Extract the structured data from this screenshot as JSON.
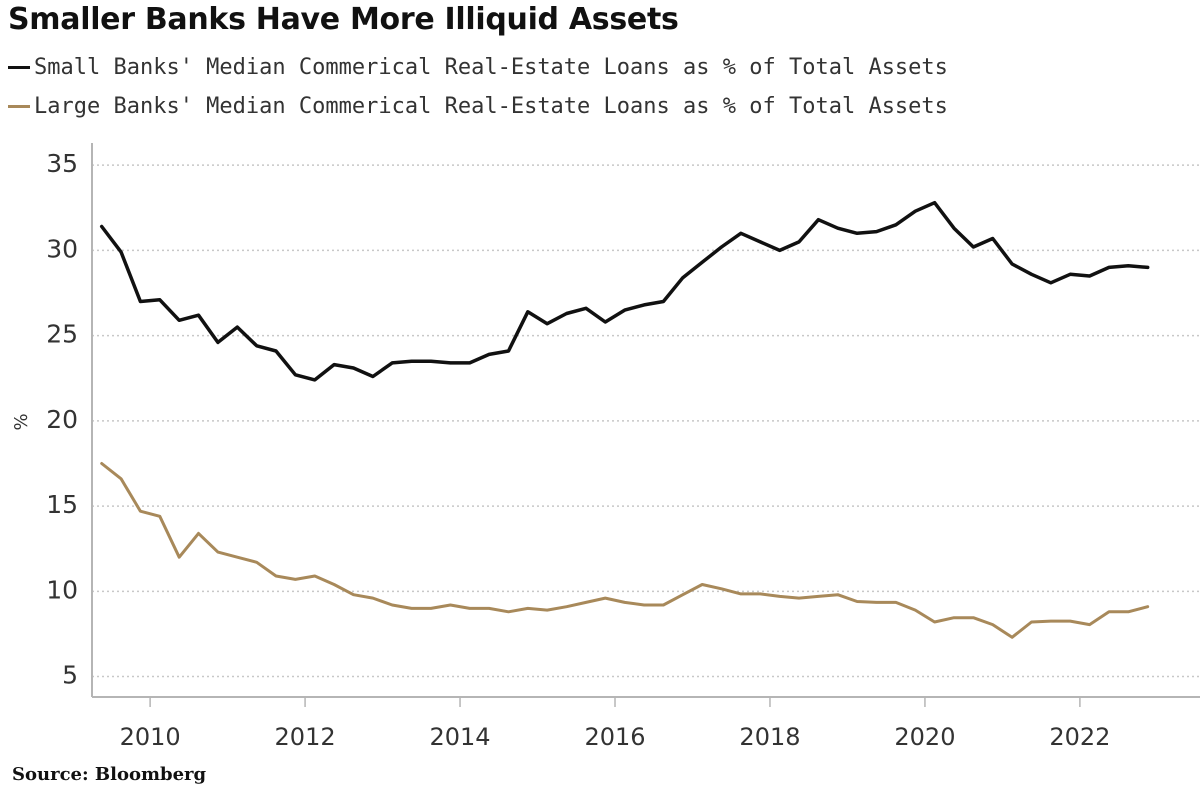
{
  "chart_data": {
    "type": "line",
    "title": "Smaller Banks Have More Illiquid Assets",
    "xlabel": "",
    "ylabel": "%",
    "ylim": [
      3.8,
      36.3
    ],
    "xlim": [
      2009.25,
      2023.55
    ],
    "yticks": [
      5,
      10,
      15,
      20,
      25,
      30,
      35
    ],
    "xticks": [
      2010,
      2012,
      2014,
      2016,
      2018,
      2020,
      2022
    ],
    "grid": "horizontal-dotted",
    "legend_position": "top-left",
    "x_start": 2009.375,
    "x_step": 0.25,
    "series": [
      {
        "name": "Small Banks' Median Commerical Real-Estate Loans as % of Total Assets",
        "color": "#111111",
        "values": [
          31.4,
          29.9,
          27.0,
          27.1,
          25.9,
          26.2,
          24.6,
          25.5,
          24.4,
          24.1,
          22.7,
          22.4,
          23.3,
          23.1,
          22.6,
          23.4,
          23.5,
          23.5,
          23.4,
          23.4,
          23.9,
          24.1,
          26.4,
          25.7,
          26.3,
          26.6,
          25.8,
          26.5,
          26.8,
          27.0,
          28.4,
          29.3,
          30.2,
          31.0,
          30.5,
          30.0,
          30.5,
          31.8,
          31.3,
          31.0,
          31.1,
          31.5,
          32.3,
          32.8,
          31.3,
          30.2,
          30.7,
          29.2,
          28.6,
          28.1,
          28.6,
          28.5,
          29.0,
          29.1,
          29.0
        ]
      },
      {
        "name": "Large Banks' Median Commerical Real-Estate Loans as % of Total Assets",
        "color": "#a8895a",
        "values": [
          17.5,
          16.6,
          14.7,
          14.4,
          12.0,
          13.4,
          12.3,
          12.0,
          11.7,
          10.9,
          10.7,
          10.9,
          10.4,
          9.8,
          9.6,
          9.2,
          9.0,
          9.0,
          9.2,
          9.0,
          9.0,
          8.8,
          9.0,
          8.9,
          9.1,
          9.35,
          9.6,
          9.35,
          9.2,
          9.2,
          9.8,
          10.4,
          10.15,
          9.85,
          9.85,
          9.7,
          9.6,
          9.7,
          9.8,
          9.4,
          9.35,
          9.35,
          8.9,
          8.2,
          8.45,
          8.45,
          8.05,
          7.3,
          8.2,
          8.25,
          8.25,
          8.05,
          8.8,
          8.8,
          9.1
        ]
      }
    ],
    "source": "Source: Bloomberg"
  },
  "legend": [
    {
      "label": "Small Banks' Median Commerical Real-Estate Loans as % of Total Assets",
      "color": "#111111"
    },
    {
      "label": "Large Banks' Median Commerical Real-Estate Loans as % of Total Assets",
      "color": "#a8895a"
    }
  ],
  "ytick_labels": [
    "5",
    "10",
    "15",
    "20",
    "25",
    "30",
    "35"
  ],
  "xtick_labels": [
    "2010",
    "2012",
    "2014",
    "2016",
    "2018",
    "2020",
    "2022"
  ],
  "y_unit": "%"
}
